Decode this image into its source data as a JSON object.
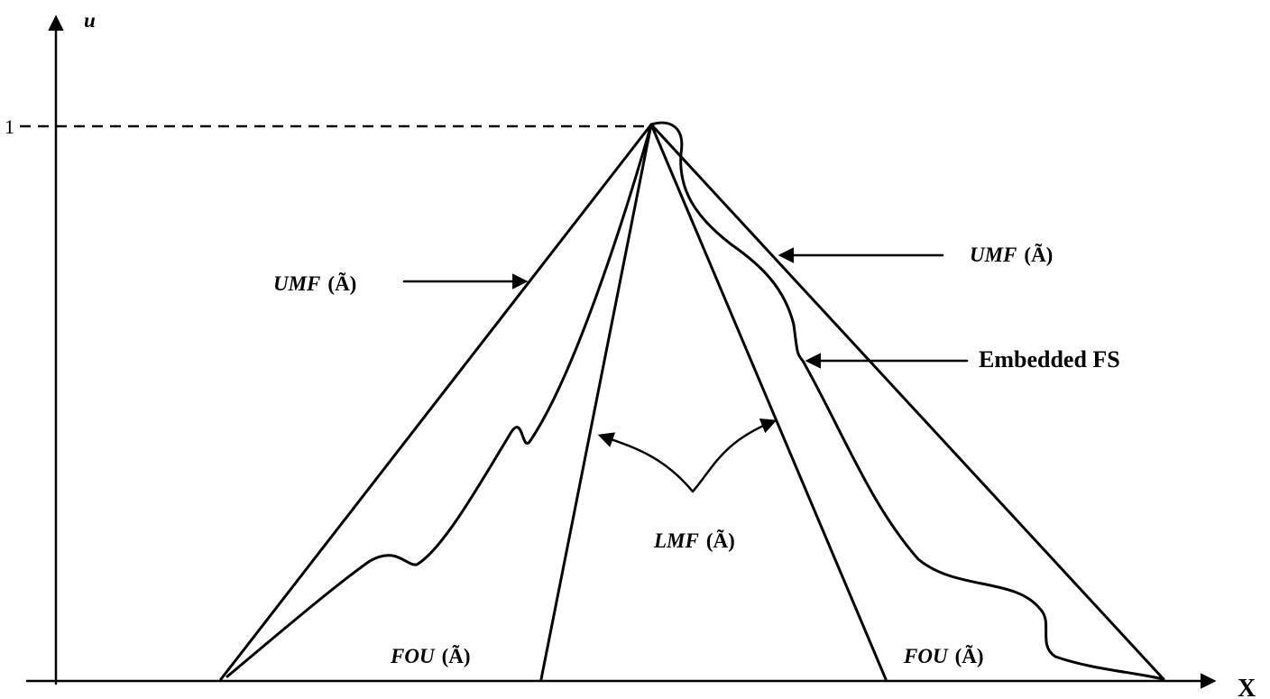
{
  "axes": {
    "x_label": "X",
    "y_label": "u",
    "y_tick_label": "1"
  },
  "labels": {
    "umf_left": {
      "prefix": "UMF",
      "set": "(Ã)"
    },
    "umf_right": {
      "prefix": "UMF",
      "set": "(Ã)"
    },
    "embedded": "Embedded FS",
    "lmf": {
      "prefix": "LMF",
      "set": "(Ã)"
    },
    "fou_left": {
      "prefix": "FOU",
      "set": "(Ã)"
    },
    "fou_right": {
      "prefix": "FOU",
      "set": "(Ã)"
    }
  }
}
